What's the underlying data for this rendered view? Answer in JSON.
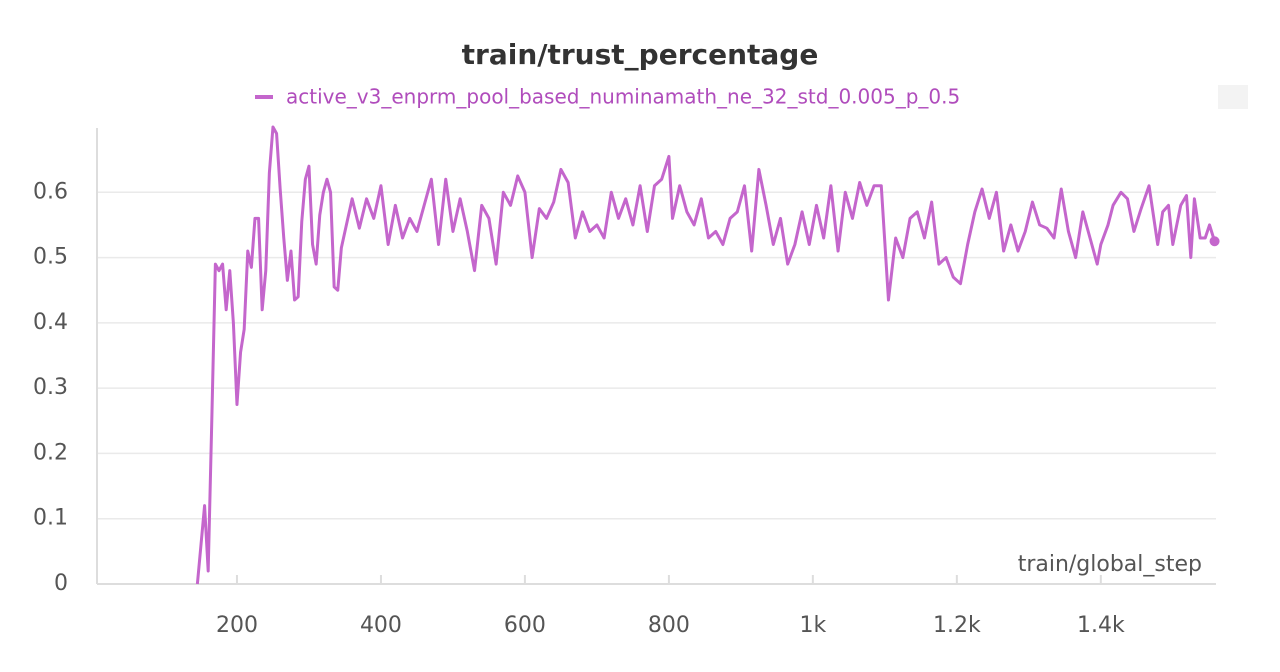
{
  "chart_data": {
    "type": "line",
    "title": "train/trust_percentage",
    "xlabel": "train/global_step",
    "xlim": [
      5,
      1560
    ],
    "ylim": [
      0,
      0.7
    ],
    "xticks": [
      200,
      400,
      600,
      800,
      {
        "value": 1000,
        "label": "1k"
      },
      {
        "value": 1200,
        "label": "1.2k"
      },
      {
        "value": 1400,
        "label": "1.4k"
      }
    ],
    "yticks": [
      0,
      0.1,
      0.2,
      0.3,
      0.4,
      0.5,
      0.6
    ],
    "grid": true,
    "series": [
      {
        "name": "active_v3_enprm_pool_based_numinamath_ne_32_std_0.005_p_0.5",
        "color": "#c466cc",
        "x": [
          145,
          150,
          155,
          160,
          165,
          170,
          175,
          180,
          185,
          190,
          195,
          200,
          205,
          210,
          215,
          220,
          225,
          230,
          235,
          240,
          245,
          250,
          255,
          260,
          265,
          270,
          275,
          280,
          285,
          290,
          295,
          300,
          305,
          310,
          315,
          320,
          325,
          330,
          335,
          340,
          345,
          350,
          360,
          370,
          380,
          390,
          400,
          410,
          420,
          430,
          440,
          450,
          460,
          470,
          480,
          490,
          500,
          510,
          520,
          530,
          540,
          550,
          560,
          570,
          580,
          590,
          600,
          610,
          620,
          630,
          640,
          650,
          660,
          670,
          680,
          690,
          700,
          710,
          720,
          730,
          740,
          750,
          760,
          770,
          780,
          790,
          800,
          805,
          815,
          825,
          835,
          845,
          855,
          865,
          875,
          885,
          895,
          905,
          915,
          925,
          935,
          945,
          955,
          965,
          975,
          985,
          995,
          1005,
          1015,
          1025,
          1035,
          1045,
          1055,
          1065,
          1075,
          1085,
          1095,
          1105,
          1115,
          1125,
          1135,
          1145,
          1155,
          1165,
          1175,
          1185,
          1195,
          1205,
          1215,
          1225,
          1235,
          1245,
          1255,
          1265,
          1275,
          1285,
          1295,
          1305,
          1315,
          1325,
          1335,
          1345,
          1355,
          1365,
          1375,
          1385,
          1395,
          1400,
          1410,
          1417,
          1428,
          1437,
          1446,
          1456,
          1467,
          1479,
          1486,
          1494,
          1500,
          1511,
          1519,
          1525,
          1530,
          1538,
          1545,
          1551,
          1558
        ],
        "values": [
          0,
          0.06,
          0.12,
          0.02,
          0.25,
          0.49,
          0.48,
          0.49,
          0.42,
          0.48,
          0.4,
          0.275,
          0.355,
          0.39,
          0.51,
          0.485,
          0.56,
          0.56,
          0.42,
          0.48,
          0.63,
          0.7,
          0.69,
          0.605,
          0.53,
          0.465,
          0.51,
          0.435,
          0.44,
          0.555,
          0.62,
          0.64,
          0.52,
          0.49,
          0.565,
          0.6,
          0.62,
          0.6,
          0.455,
          0.45,
          0.515,
          0.54,
          0.59,
          0.545,
          0.59,
          0.56,
          0.61,
          0.52,
          0.58,
          0.53,
          0.56,
          0.54,
          0.58,
          0.62,
          0.52,
          0.62,
          0.54,
          0.59,
          0.54,
          0.48,
          0.58,
          0.56,
          0.49,
          0.6,
          0.58,
          0.625,
          0.6,
          0.5,
          0.575,
          0.56,
          0.585,
          0.635,
          0.615,
          0.53,
          0.57,
          0.54,
          0.55,
          0.53,
          0.6,
          0.56,
          0.59,
          0.55,
          0.61,
          0.54,
          0.61,
          0.62,
          0.655,
          0.56,
          0.61,
          0.57,
          0.55,
          0.59,
          0.53,
          0.54,
          0.52,
          0.56,
          0.57,
          0.61,
          0.51,
          0.635,
          0.58,
          0.52,
          0.56,
          0.49,
          0.52,
          0.57,
          0.52,
          0.58,
          0.53,
          0.61,
          0.51,
          0.6,
          0.56,
          0.615,
          0.58,
          0.61,
          0.61,
          0.435,
          0.53,
          0.5,
          0.56,
          0.57,
          0.53,
          0.585,
          0.49,
          0.5,
          0.47,
          0.46,
          0.52,
          0.57,
          0.605,
          0.56,
          0.6,
          0.51,
          0.55,
          0.51,
          0.54,
          0.585,
          0.55,
          0.545,
          0.53,
          0.605,
          0.54,
          0.5,
          0.57,
          0.53,
          0.49,
          0.52,
          0.55,
          0.58,
          0.6,
          0.59,
          0.54,
          0.575,
          0.61,
          0.52,
          0.57,
          0.58,
          0.52,
          0.58,
          0.595,
          0.5,
          0.59,
          0.53,
          0.53,
          0.55,
          0.525
        ]
      }
    ]
  }
}
